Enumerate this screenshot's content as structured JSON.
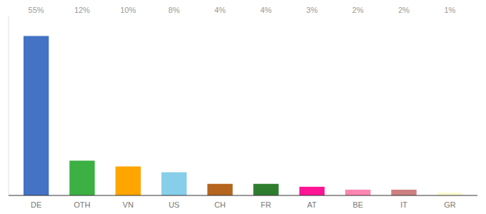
{
  "chart_data": {
    "type": "bar",
    "categories": [
      "DE",
      "OTH",
      "VN",
      "US",
      "CH",
      "FR",
      "AT",
      "BE",
      "IT",
      "GR"
    ],
    "values": [
      55,
      12,
      10,
      8,
      4,
      4,
      3,
      2,
      2,
      1
    ],
    "value_labels": [
      "55%",
      "12%",
      "10%",
      "8%",
      "4%",
      "4%",
      "3%",
      "2%",
      "2%",
      "1%"
    ],
    "colors": [
      "#4472C4",
      "#3CB043",
      "#FFA500",
      "#87CEEB",
      "#B5651D",
      "#2E7D2E",
      "#FF1493",
      "#FF85B3",
      "#CD8080",
      "#FAFAD2"
    ],
    "ylim": [
      0,
      62
    ],
    "data_labels": true,
    "tick_labels": "x"
  }
}
